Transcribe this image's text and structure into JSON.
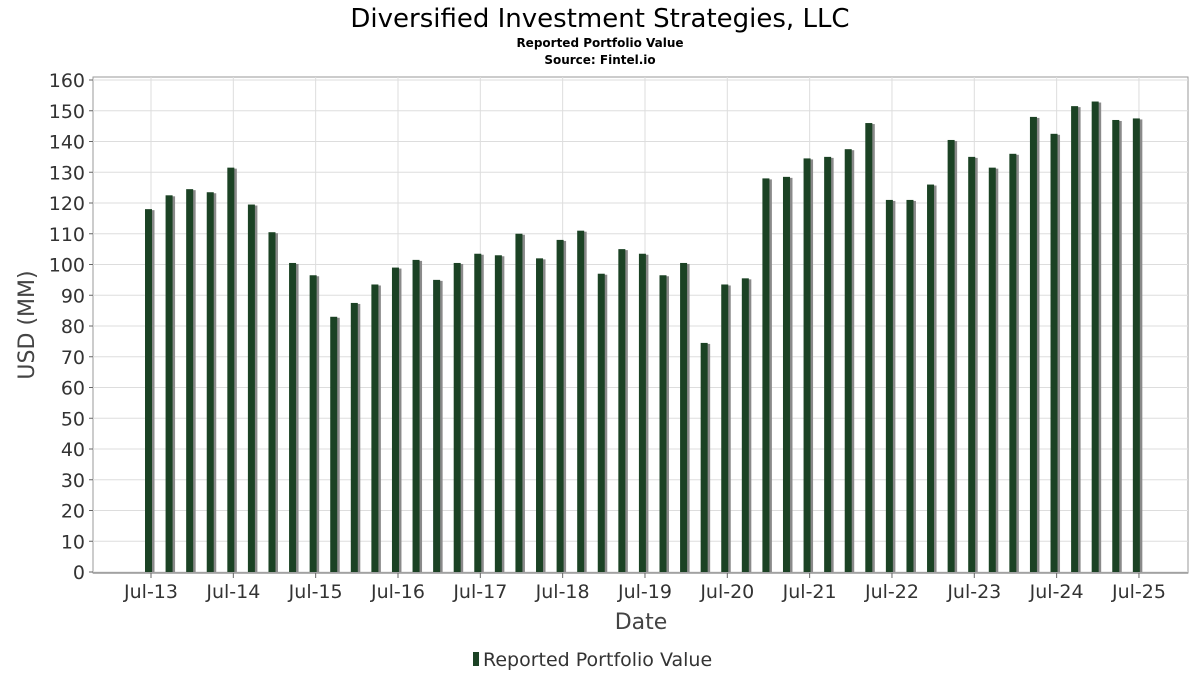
{
  "chart_data": {
    "type": "bar",
    "title": "Diversified Investment Strategies, LLC",
    "subtitle": "Reported Portfolio Value",
    "source": "Source: Fintel.io",
    "xlabel": "Date",
    "ylabel": "USD (MM)",
    "ylim": [
      0,
      160
    ],
    "yticks": [
      0,
      10,
      20,
      30,
      40,
      50,
      60,
      70,
      80,
      90,
      100,
      110,
      120,
      130,
      140,
      150,
      160
    ],
    "xticks": [
      "Jul-13",
      "Jul-14",
      "Jul-15",
      "Jul-16",
      "Jul-17",
      "Jul-18",
      "Jul-19",
      "Jul-20",
      "Jul-21",
      "Jul-22",
      "Jul-23",
      "Jul-24",
      "Jul-25"
    ],
    "grid": true,
    "legend": "bottom-center",
    "bar_color": "#1b4224",
    "shadow_color": "#8a8a8a",
    "series": [
      {
        "name": "Reported Portfolio Value",
        "values": [
          118,
          122.5,
          124.5,
          123.5,
          131.5,
          119.5,
          110.5,
          100.5,
          96.5,
          83,
          87.5,
          93.5,
          99,
          101.5,
          95,
          100.5,
          103.5,
          103,
          110,
          102,
          108,
          111,
          97,
          105,
          103.5,
          96.5,
          100.5,
          74.5,
          93.5,
          95.5,
          128,
          128.5,
          134.5,
          135,
          137.5,
          146,
          121,
          121,
          126,
          140.5,
          135,
          131.5,
          136,
          148,
          142.5,
          151.5,
          153,
          147,
          147.5
        ]
      }
    ]
  }
}
